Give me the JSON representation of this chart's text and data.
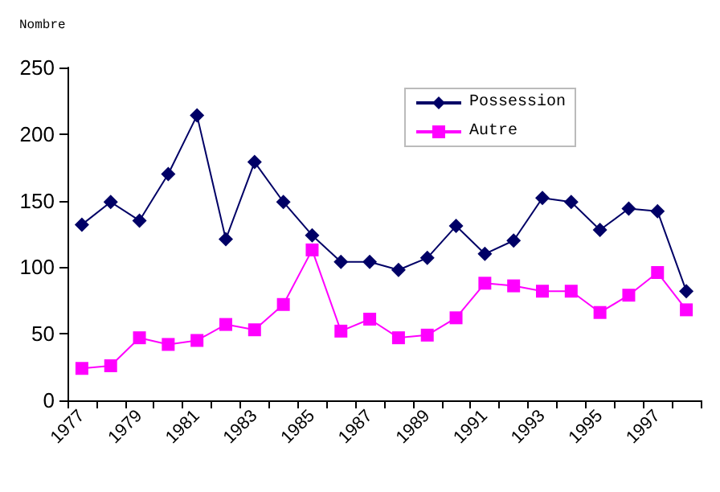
{
  "chart_data": {
    "type": "line",
    "ylabel": "Nombre",
    "categories": [
      "1977",
      null,
      "1979",
      null,
      "1981",
      null,
      "1983",
      null,
      "1985",
      null,
      "1987",
      null,
      "1989",
      null,
      "1991",
      null,
      "1993",
      null,
      "1995",
      null,
      "1997",
      null
    ],
    "series": [
      {
        "name": "Possession",
        "color": "#000066",
        "marker": "diamond",
        "values": [
          132,
          149,
          135,
          170,
          214,
          121,
          179,
          149,
          124,
          104,
          104,
          98,
          107,
          131,
          110,
          120,
          152,
          149,
          128,
          144,
          142,
          82
        ]
      },
      {
        "name": "Autre",
        "color": "#ff00ff",
        "marker": "square",
        "values": [
          24,
          26,
          47,
          42,
          45,
          57,
          53,
          72,
          113,
          52,
          61,
          47,
          49,
          62,
          88,
          86,
          82,
          82,
          66,
          79,
          96,
          68
        ]
      }
    ],
    "ylim": [
      0,
      250
    ],
    "yticks": [
      0,
      50,
      100,
      150,
      200,
      250
    ],
    "grid": false,
    "legend": "top right",
    "line_style": "solid"
  }
}
